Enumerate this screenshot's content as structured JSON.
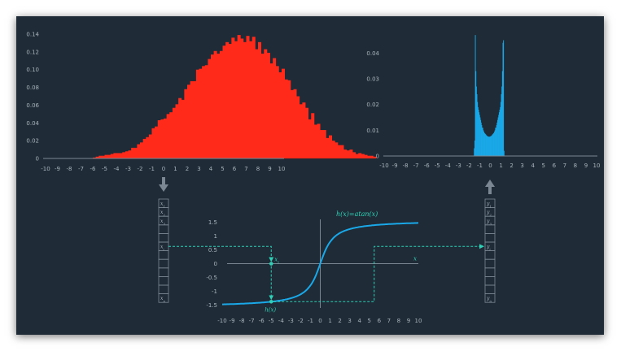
{
  "colors": {
    "background": "#1f2b36",
    "input_hist": "#ff2a1a",
    "output_hist": "#1aa8e8",
    "curve": "#1aa8e8",
    "annotation": "#2fd0b6",
    "axis": "#7b8894"
  },
  "input_histogram": {
    "type": "bar",
    "x_ticks": [
      "-10",
      "-9",
      "-8",
      "-7",
      "-6",
      "-5",
      "-4",
      "-3",
      "-2",
      "-1",
      "0",
      "1",
      "2",
      "3",
      "4",
      "5",
      "6",
      "7",
      "8",
      "9",
      "10"
    ],
    "y_ticks": [
      "0",
      "0.02",
      "0.04",
      "0.06",
      "0.08",
      "0.10",
      "0.12",
      "0.14"
    ],
    "xlim": [
      -10,
      10
    ],
    "ylim": [
      0,
      0.14
    ],
    "bin_width": 0.25,
    "values": [
      0.001,
      0.002,
      0.003,
      0.003,
      0.004,
      0.004,
      0.005,
      0.006,
      0.006,
      0.006,
      0.007,
      0.008,
      0.009,
      0.012,
      0.012,
      0.016,
      0.018,
      0.022,
      0.024,
      0.027,
      0.034,
      0.036,
      0.043,
      0.044,
      0.045,
      0.05,
      0.052,
      0.057,
      0.061,
      0.068,
      0.066,
      0.078,
      0.083,
      0.087,
      0.087,
      0.1,
      0.101,
      0.104,
      0.105,
      0.112,
      0.117,
      0.121,
      0.118,
      0.121,
      0.127,
      0.131,
      0.129,
      0.136,
      0.132,
      0.139,
      0.135,
      0.131,
      0.138,
      0.132,
      0.137,
      0.123,
      0.131,
      0.118,
      0.123,
      0.119,
      0.107,
      0.113,
      0.104,
      0.097,
      0.101,
      0.089,
      0.088,
      0.077,
      0.078,
      0.07,
      0.061,
      0.063,
      0.057,
      0.044,
      0.051,
      0.038,
      0.039,
      0.032,
      0.032,
      0.023,
      0.026,
      0.02,
      0.018,
      0.015,
      0.015,
      0.01,
      0.009,
      0.01,
      0.007,
      0.005,
      0.006,
      0.005,
      0.004,
      0.003,
      0.003,
      0.002
    ]
  },
  "output_histogram": {
    "type": "bar",
    "x_ticks": [
      "-10",
      "-9",
      "-8",
      "-7",
      "-6",
      "-5",
      "-4",
      "-3",
      "-2",
      "-1",
      "0",
      "1",
      "2",
      "3",
      "4",
      "5",
      "6",
      "7",
      "8",
      "9",
      "10"
    ],
    "y_ticks": [
      "0",
      "0.01",
      "0.02",
      "0.03",
      "0.04"
    ],
    "xlim": [
      -10,
      10
    ],
    "ylim": [
      0,
      0.048
    ],
    "bin_width": 0.05,
    "x_start": -1.55,
    "values": [
      0.003,
      0.006,
      0.047,
      0.033,
      0.027,
      0.024,
      0.021,
      0.019,
      0.018,
      0.017,
      0.016,
      0.015,
      0.014,
      0.013,
      0.012,
      0.011,
      0.011,
      0.01,
      0.0095,
      0.009,
      0.0088,
      0.0085,
      0.0083,
      0.008,
      0.0078,
      0.0077,
      0.0076,
      0.0075,
      0.0075,
      0.0075,
      0.0076,
      0.0077,
      0.0078,
      0.008,
      0.0083,
      0.0085,
      0.0088,
      0.009,
      0.0095,
      0.01,
      0.011,
      0.011,
      0.012,
      0.013,
      0.014,
      0.015,
      0.016,
      0.017,
      0.018,
      0.019,
      0.021,
      0.024,
      0.027,
      0.033,
      0.044,
      0.045,
      0.002
    ]
  },
  "transfer_function": {
    "type": "line",
    "label": "h(x)=atan(x)",
    "x_ticks": [
      "-10",
      "-9",
      "-8",
      "-7",
      "-6",
      "-5",
      "-4",
      "-3",
      "-2",
      "-1",
      "0",
      "1",
      "2",
      "3",
      "4",
      "5",
      "6",
      "7",
      "8",
      "9",
      "10"
    ],
    "y_ticks": [
      "1.5",
      "1",
      "0.5",
      "0",
      "-0.5",
      "-1",
      "-1.5"
    ],
    "xlim": [
      -10,
      10
    ],
    "ylim": [
      -1.6,
      1.6
    ],
    "axis_label": "x",
    "sample_x": -5,
    "sample_x_label": "x",
    "sample_x_sub": "i",
    "sample_h_label": "h(x)",
    "output_mark_x": 5.5
  },
  "input_vector": {
    "cells": [
      {
        "base": "x",
        "sub": "1"
      },
      {
        "base": "x",
        "sub": "2"
      },
      {
        "base": "x",
        "sub": "3"
      },
      {
        "base": "",
        "sub": ""
      },
      {
        "base": "",
        "sub": ""
      },
      {
        "base": "x",
        "sub": "i"
      },
      {
        "base": "",
        "sub": ""
      },
      {
        "base": "",
        "sub": ""
      },
      {
        "base": "",
        "sub": ""
      },
      {
        "base": "",
        "sub": ""
      },
      {
        "base": "",
        "sub": ""
      },
      {
        "base": "x",
        "sub": "n"
      }
    ]
  },
  "output_vector": {
    "cells": [
      {
        "base": "y",
        "sub": "1"
      },
      {
        "base": "y",
        "sub": "2"
      },
      {
        "base": "y",
        "sub": "3"
      },
      {
        "base": "",
        "sub": ""
      },
      {
        "base": "",
        "sub": ""
      },
      {
        "base": "y",
        "sub": "i"
      },
      {
        "base": "",
        "sub": ""
      },
      {
        "base": "",
        "sub": ""
      },
      {
        "base": "",
        "sub": ""
      },
      {
        "base": "",
        "sub": ""
      },
      {
        "base": "",
        "sub": ""
      },
      {
        "base": "y",
        "sub": "n"
      }
    ]
  }
}
